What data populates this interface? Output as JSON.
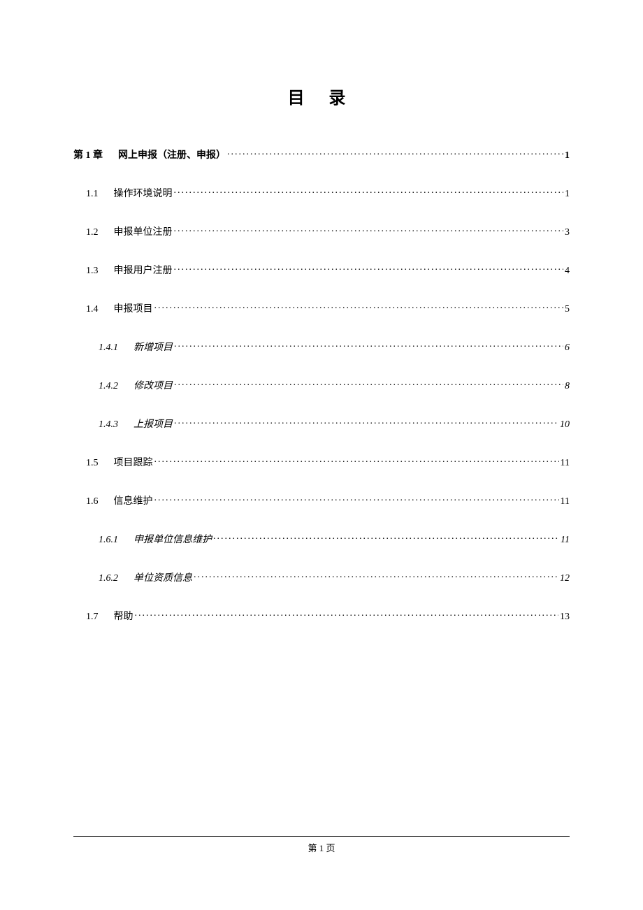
{
  "title": "目 录",
  "toc": [
    {
      "level": 1,
      "num": "第 1 章",
      "text": "网上申报（注册、申报）",
      "page": "1"
    },
    {
      "level": 2,
      "num": "1.1",
      "text": "操作环境说明",
      "page": "1"
    },
    {
      "level": 2,
      "num": "1.2",
      "text": "申报单位注册",
      "page": "3"
    },
    {
      "level": 2,
      "num": "1.3",
      "text": "申报用户注册",
      "page": "4"
    },
    {
      "level": 2,
      "num": "1.4",
      "text": "申报项目",
      "page": "5"
    },
    {
      "level": 3,
      "num": "1.4.1",
      "text": "新增项目",
      "page": "6"
    },
    {
      "level": 3,
      "num": "1.4.2",
      "text": "修改项目",
      "page": "8"
    },
    {
      "level": 3,
      "num": "1.4.3",
      "text": "上报项目",
      "page": "10"
    },
    {
      "level": 2,
      "num": "1.5",
      "text": "项目跟踪",
      "page": "11"
    },
    {
      "level": 2,
      "num": "1.6",
      "text": "信息维护",
      "page": "11"
    },
    {
      "level": 3,
      "num": "1.6.1",
      "text": "申报单位信息维护",
      "page": "11"
    },
    {
      "level": 3,
      "num": "1.6.2",
      "text": "单位资质信息",
      "page": "12"
    },
    {
      "level": 2,
      "num": "1.7",
      "text": "帮助",
      "page": "13"
    }
  ],
  "footer": "第 1 页"
}
